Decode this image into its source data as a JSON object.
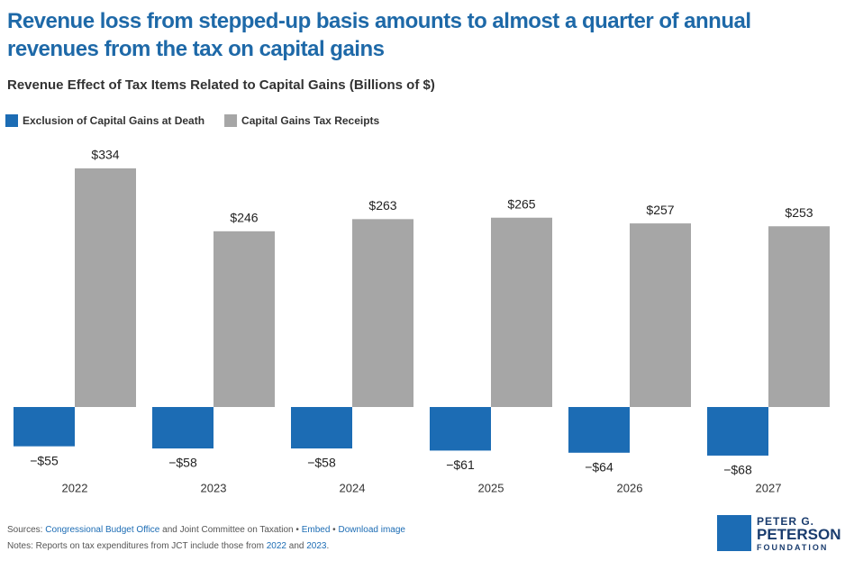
{
  "chart_data": {
    "type": "bar",
    "title": "Revenue loss from stepped-up basis amounts to almost a quarter of annual revenues from the tax on capital gains",
    "subtitle": "Revenue Effect of Tax Items Related to Capital Gains (Billions of $)",
    "categories": [
      "2022",
      "2023",
      "2024",
      "2025",
      "2026",
      "2027"
    ],
    "series": [
      {
        "name": "Exclusion of Capital Gains at Death",
        "color": "#1c6cb4",
        "values": [
          -55,
          -58,
          -58,
          -61,
          -64,
          -68
        ],
        "value_labels": [
          "−$55",
          "−$58",
          "−$58",
          "−$61",
          "−$64",
          "−$68"
        ]
      },
      {
        "name": "Capital Gains Tax Receipts",
        "color": "#a6a6a6",
        "values": [
          334,
          246,
          263,
          265,
          257,
          253
        ],
        "value_labels": [
          "$334",
          "$246",
          "$263",
          "$265",
          "$257",
          "$253"
        ]
      }
    ],
    "legend": "top-left"
  },
  "footer": {
    "sources": {
      "prefix": "Sources:",
      "link": "Congressional Budget Office",
      "text": "and Joint Committee on Taxation",
      "separator": "•",
      "embed": "Embed",
      "download": "Download image"
    },
    "notes": {
      "prefix": "Notes: Reports on tax expenditures from JCT include those from",
      "link1": "2022",
      "mid": "and",
      "link2": "2023",
      "end": "."
    }
  },
  "logo": {
    "line1": "PETER G.",
    "line2": "PETERSON",
    "line3": "FOUNDATION"
  }
}
